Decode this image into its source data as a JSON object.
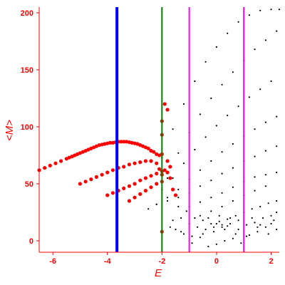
{
  "chart_data": {
    "type": "scatter",
    "xlabel": "E",
    "ylabel": "<M>",
    "xlim": [
      -6.5,
      2.3
    ],
    "ylim": [
      -10,
      205
    ],
    "x_ticks": [
      -6,
      -4,
      -2,
      0,
      2
    ],
    "y_ticks": [
      0,
      50,
      100,
      150,
      200
    ],
    "grid": false,
    "vlines": [
      {
        "x": -3.65,
        "color": "#0000ff",
        "width": "thick"
      },
      {
        "x": -2.0,
        "color": "#008000",
        "width": "medium"
      },
      {
        "x": -1.0,
        "color": "#ff00ff",
        "width": "medium"
      },
      {
        "x": 1.0,
        "color": "#ff00ff",
        "width": "medium"
      }
    ],
    "series": [
      {
        "color": "#ff0000",
        "marker_size": "large",
        "points": [
          [
            -6.5,
            62
          ],
          [
            -6.3,
            64
          ],
          [
            -6.1,
            66
          ],
          [
            -5.9,
            68
          ],
          [
            -5.7,
            70
          ],
          [
            -5.5,
            72
          ],
          [
            -5.4,
            73
          ],
          [
            -5.3,
            74
          ],
          [
            -5.2,
            75
          ],
          [
            -5.1,
            76
          ],
          [
            -5.0,
            77
          ],
          [
            -4.9,
            78
          ],
          [
            -4.8,
            79
          ],
          [
            -4.7,
            80
          ],
          [
            -4.6,
            81
          ],
          [
            -4.5,
            82
          ],
          [
            -4.4,
            83
          ],
          [
            -4.3,
            84
          ],
          [
            -4.2,
            84.5
          ],
          [
            -4.1,
            85
          ],
          [
            -4.0,
            85.5
          ],
          [
            -3.9,
            86
          ],
          [
            -3.8,
            86
          ],
          [
            -3.7,
            86.5
          ],
          [
            -3.6,
            87
          ],
          [
            -3.5,
            87
          ],
          [
            -3.4,
            87
          ],
          [
            -3.3,
            87
          ],
          [
            -3.2,
            86.5
          ],
          [
            -3.1,
            86
          ],
          [
            -3.0,
            85.5
          ],
          [
            -2.9,
            85
          ],
          [
            -2.8,
            84
          ],
          [
            -2.7,
            83
          ],
          [
            -2.6,
            82
          ],
          [
            -2.5,
            81
          ],
          [
            -2.4,
            79
          ],
          [
            -2.3,
            78
          ],
          [
            -2.2,
            76
          ],
          [
            -2.1,
            75
          ],
          [
            -2.0,
            76
          ],
          [
            -5.0,
            50
          ],
          [
            -4.8,
            52
          ],
          [
            -4.6,
            54
          ],
          [
            -4.4,
            56
          ],
          [
            -4.2,
            58
          ],
          [
            -4.0,
            60
          ],
          [
            -3.8,
            62
          ],
          [
            -3.6,
            64
          ],
          [
            -3.4,
            65
          ],
          [
            -3.2,
            67
          ],
          [
            -3.0,
            68
          ],
          [
            -2.8,
            69
          ],
          [
            -2.6,
            70
          ],
          [
            -2.4,
            70
          ],
          [
            -2.2,
            68
          ],
          [
            -2.1,
            63
          ],
          [
            -2.0,
            58
          ],
          [
            -4.0,
            40
          ],
          [
            -3.8,
            42
          ],
          [
            -3.6,
            44
          ],
          [
            -3.4,
            46
          ],
          [
            -3.2,
            48
          ],
          [
            -3.0,
            50
          ],
          [
            -2.8,
            53
          ],
          [
            -2.6,
            55
          ],
          [
            -2.4,
            57
          ],
          [
            -2.2,
            59
          ],
          [
            -2.0,
            61
          ],
          [
            -1.9,
            62
          ],
          [
            -1.8,
            60
          ],
          [
            -1.7,
            55
          ],
          [
            -3.2,
            35
          ],
          [
            -3.0,
            38
          ],
          [
            -2.8,
            41
          ],
          [
            -2.6,
            44
          ],
          [
            -2.4,
            47
          ],
          [
            -2.2,
            50
          ],
          [
            -2.0,
            52
          ],
          [
            -2.0,
            105
          ],
          [
            -2.0,
            93
          ],
          [
            -2.0,
            8
          ],
          [
            -1.9,
            120
          ],
          [
            -1.8,
            115
          ],
          [
            -1.8,
            70
          ],
          [
            -1.7,
            65
          ],
          [
            -1.6,
            45
          ],
          [
            -1.5,
            40
          ]
        ]
      },
      {
        "color": "#000000",
        "marker_size": "small",
        "points": [
          [
            -2.0,
            73
          ],
          [
            -1.6,
            98
          ],
          [
            -1.2,
            120
          ],
          [
            -0.8,
            140
          ],
          [
            -0.4,
            157
          ],
          [
            0.0,
            170
          ],
          [
            0.4,
            182
          ],
          [
            0.8,
            192
          ],
          [
            1.2,
            198
          ],
          [
            1.6,
            202
          ],
          [
            2.0,
            203
          ],
          [
            2.3,
            203
          ],
          [
            -1.8,
            55
          ],
          [
            -1.4,
            77
          ],
          [
            -1.0,
            95
          ],
          [
            -0.6,
            111
          ],
          [
            -0.2,
            125
          ],
          [
            0.2,
            137
          ],
          [
            0.6,
            148
          ],
          [
            1.0,
            158
          ],
          [
            1.4,
            168
          ],
          [
            1.8,
            176
          ],
          [
            2.2,
            184
          ],
          [
            -2.0,
            45
          ],
          [
            -1.6,
            55
          ],
          [
            -1.2,
            68
          ],
          [
            -0.8,
            80
          ],
          [
            -0.4,
            91
          ],
          [
            0.0,
            101
          ],
          [
            0.4,
            110
          ],
          [
            0.8,
            118
          ],
          [
            1.2,
            126
          ],
          [
            1.6,
            133
          ],
          [
            2.0,
            140
          ],
          [
            -2.2,
            32
          ],
          [
            -1.8,
            38
          ],
          [
            -1.4,
            45
          ],
          [
            -1.0,
            54
          ],
          [
            -0.6,
            62
          ],
          [
            -0.2,
            70
          ],
          [
            0.2,
            78
          ],
          [
            0.6,
            85
          ],
          [
            1.0,
            92
          ],
          [
            1.4,
            98
          ],
          [
            1.8,
            104
          ],
          [
            2.2,
            109
          ],
          [
            -2.5,
            28
          ],
          [
            -2.2,
            32
          ],
          [
            -1.8,
            35
          ],
          [
            -1.4,
            38
          ],
          [
            -1.0,
            42
          ],
          [
            -0.6,
            48
          ],
          [
            -0.2,
            53
          ],
          [
            0.2,
            59
          ],
          [
            0.6,
            64
          ],
          [
            1.0,
            70
          ],
          [
            1.4,
            74
          ],
          [
            1.8,
            79
          ],
          [
            2.2,
            83
          ],
          [
            -1.0,
            30
          ],
          [
            -0.6,
            34
          ],
          [
            -0.2,
            38
          ],
          [
            0.2,
            42
          ],
          [
            0.6,
            47
          ],
          [
            1.0,
            52
          ],
          [
            1.4,
            56
          ],
          [
            1.8,
            58
          ],
          [
            2.2,
            60
          ],
          [
            -0.6,
            22
          ],
          [
            -0.2,
            26
          ],
          [
            0.2,
            30
          ],
          [
            0.6,
            35
          ],
          [
            1.0,
            40
          ],
          [
            1.4,
            44
          ],
          [
            1.8,
            48
          ],
          [
            -1.6,
            18
          ],
          [
            -1.3,
            20
          ],
          [
            -1.0,
            15
          ],
          [
            -0.7,
            12
          ],
          [
            -0.4,
            10
          ],
          [
            -0.1,
            8
          ],
          [
            0.2,
            12
          ],
          [
            0.5,
            15
          ],
          [
            0.8,
            10
          ],
          [
            1.1,
            14
          ],
          [
            1.4,
            16
          ],
          [
            1.7,
            20
          ],
          [
            2.0,
            22
          ],
          [
            -1.5,
            10
          ],
          [
            -1.2,
            6
          ],
          [
            -0.9,
            4
          ],
          [
            -0.6,
            3
          ],
          [
            -0.3,
            -5
          ],
          [
            0.0,
            -3
          ],
          [
            0.3,
            0
          ],
          [
            0.6,
            2
          ],
          [
            0.9,
            -2
          ],
          [
            1.2,
            5
          ],
          [
            1.5,
            8
          ],
          [
            1.8,
            12
          ],
          [
            2.1,
            18
          ],
          [
            -1.4,
            30
          ],
          [
            -1.1,
            26
          ],
          [
            -0.8,
            20
          ],
          [
            -0.5,
            18
          ],
          [
            -0.2,
            15
          ],
          [
            0.1,
            17
          ],
          [
            0.4,
            19
          ],
          [
            0.7,
            22
          ],
          [
            1.0,
            25
          ],
          [
            1.3,
            28
          ],
          [
            1.6,
            30
          ],
          [
            1.9,
            33
          ],
          [
            2.2,
            35
          ],
          [
            -1.7,
            12
          ],
          [
            -1.3,
            8
          ],
          [
            -0.9,
            -2
          ],
          [
            -0.5,
            6
          ],
          [
            -0.1,
            12
          ],
          [
            0.3,
            10
          ],
          [
            0.7,
            6
          ],
          [
            1.1,
            4
          ],
          [
            1.5,
            12
          ],
          [
            1.9,
            6
          ],
          [
            2.2,
            10
          ],
          [
            -0.3,
            20
          ],
          [
            0.0,
            15
          ],
          [
            0.2,
            14
          ],
          [
            0.4,
            13
          ],
          [
            0.1,
            22
          ],
          [
            0.5,
            20
          ],
          [
            0.8,
            18
          ],
          [
            1.3,
            20
          ],
          [
            1.6,
            14
          ],
          [
            2.0,
            15
          ],
          [
            2.2,
            25
          ]
        ]
      }
    ]
  }
}
